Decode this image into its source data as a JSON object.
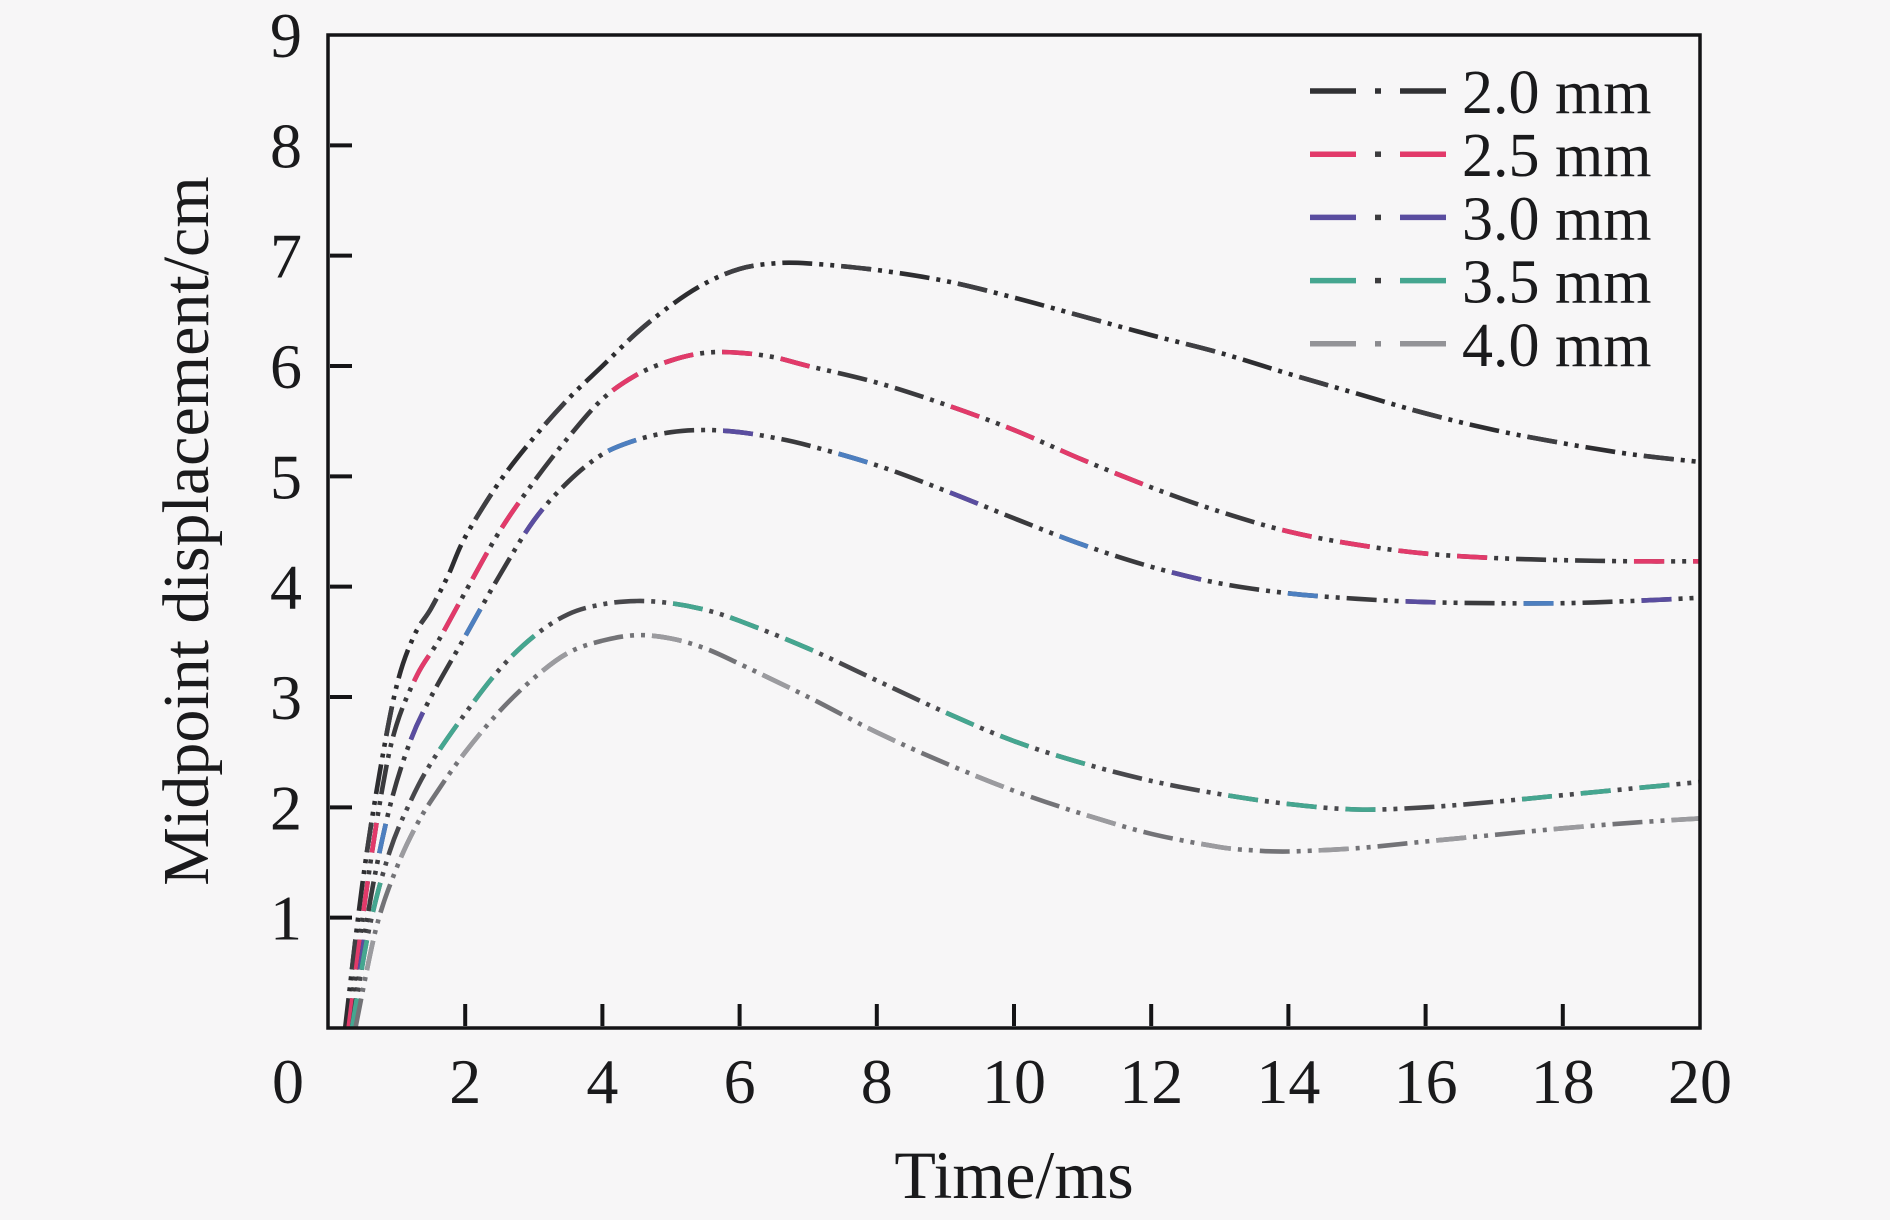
{
  "chart_data": {
    "type": "line",
    "title": "",
    "xlabel": "Time/ms",
    "ylabel": "Midpoint displacement/cm",
    "xlim": [
      0,
      20
    ],
    "ylim": [
      0,
      9
    ],
    "xticks": [
      0,
      2,
      4,
      6,
      8,
      10,
      12,
      14,
      16,
      18,
      20
    ],
    "yticks": [
      1,
      2,
      3,
      4,
      5,
      6,
      7,
      8,
      9
    ],
    "grid": false,
    "legend_position": "top-right",
    "line_style": "dash-dot-dot",
    "frame_color": "#141416",
    "background_color": "#f7f6f7",
    "origin_label": "0",
    "series": [
      {
        "name": "2.0 mm",
        "legend_color": "#313134",
        "legend_dot_color": "#313134",
        "layers": [
          {
            "color": "#2d2d30",
            "dash": "30 7 4 7 4 7",
            "offset": 0
          },
          {
            "color": "#3f3f43",
            "dash": "30 88",
            "offset": 177
          }
        ],
        "points": [
          [
            0.25,
            0
          ],
          [
            0.5,
            1.3
          ],
          [
            0.75,
            2.3
          ],
          [
            1,
            3.1
          ],
          [
            1.25,
            3.55
          ],
          [
            1.5,
            3.8
          ],
          [
            1.75,
            4.1
          ],
          [
            2,
            4.45
          ],
          [
            2.5,
            4.95
          ],
          [
            3,
            5.35
          ],
          [
            3.5,
            5.7
          ],
          [
            4,
            6.0
          ],
          [
            4.5,
            6.3
          ],
          [
            5,
            6.55
          ],
          [
            5.5,
            6.75
          ],
          [
            6,
            6.88
          ],
          [
            6.5,
            6.93
          ],
          [
            7,
            6.93
          ],
          [
            8,
            6.87
          ],
          [
            9,
            6.77
          ],
          [
            10,
            6.62
          ],
          [
            11,
            6.45
          ],
          [
            12,
            6.28
          ],
          [
            13,
            6.12
          ],
          [
            14,
            5.93
          ],
          [
            15,
            5.75
          ],
          [
            16,
            5.57
          ],
          [
            17,
            5.42
          ],
          [
            18,
            5.3
          ],
          [
            19,
            5.2
          ],
          [
            20,
            5.13
          ]
        ]
      },
      {
        "name": "2.5 mm",
        "legend_color": "#e23a6a",
        "legend_dot_color": "#3c3c3e",
        "layers": [
          {
            "color": "#3a3a3d",
            "dash": "30 7 4 7 4 7",
            "offset": 0
          },
          {
            "color": "#e23a6a",
            "dash": "30 29 30 29 30 29 30 147",
            "offset": 0
          }
        ],
        "points": [
          [
            0.3,
            0
          ],
          [
            0.55,
            1.2
          ],
          [
            0.8,
            2.2
          ],
          [
            1,
            2.75
          ],
          [
            1.3,
            3.2
          ],
          [
            1.6,
            3.5
          ],
          [
            2,
            3.95
          ],
          [
            2.5,
            4.5
          ],
          [
            3,
            4.95
          ],
          [
            3.5,
            5.35
          ],
          [
            4,
            5.7
          ],
          [
            4.5,
            5.92
          ],
          [
            5,
            6.05
          ],
          [
            5.5,
            6.12
          ],
          [
            6,
            6.12
          ],
          [
            6.5,
            6.08
          ],
          [
            7,
            6.0
          ],
          [
            8,
            5.85
          ],
          [
            9,
            5.65
          ],
          [
            10,
            5.42
          ],
          [
            11,
            5.15
          ],
          [
            12,
            4.9
          ],
          [
            13,
            4.68
          ],
          [
            14,
            4.5
          ],
          [
            15,
            4.38
          ],
          [
            16,
            4.3
          ],
          [
            17,
            4.26
          ],
          [
            18,
            4.24
          ],
          [
            19,
            4.23
          ],
          [
            20,
            4.23
          ]
        ]
      },
      {
        "name": "3.0 mm",
        "legend_color": "#5a4da0",
        "legend_dot_color": "#3c3c3e",
        "layers": [
          {
            "color": "#3a3a3d",
            "dash": "30 7 4 7 4 7",
            "offset": 0
          },
          {
            "color": "#5a4da0",
            "dash": "30 206",
            "offset": 177
          },
          {
            "color": "#4d7fc0",
            "dash": "30 206",
            "offset": 59
          }
        ],
        "points": [
          [
            0.35,
            0
          ],
          [
            0.6,
            1.1
          ],
          [
            0.9,
            2.0
          ],
          [
            1.2,
            2.6
          ],
          [
            1.5,
            3.0
          ],
          [
            2,
            3.55
          ],
          [
            2.5,
            4.1
          ],
          [
            3,
            4.6
          ],
          [
            3.5,
            4.95
          ],
          [
            4,
            5.2
          ],
          [
            4.5,
            5.33
          ],
          [
            5,
            5.4
          ],
          [
            5.5,
            5.42
          ],
          [
            6,
            5.4
          ],
          [
            6.5,
            5.35
          ],
          [
            7,
            5.28
          ],
          [
            8,
            5.1
          ],
          [
            9,
            4.87
          ],
          [
            10,
            4.62
          ],
          [
            11,
            4.38
          ],
          [
            12,
            4.18
          ],
          [
            13,
            4.03
          ],
          [
            14,
            3.94
          ],
          [
            15,
            3.89
          ],
          [
            16,
            3.86
          ],
          [
            17,
            3.85
          ],
          [
            18,
            3.85
          ],
          [
            19,
            3.87
          ],
          [
            20,
            3.9
          ]
        ]
      },
      {
        "name": "3.5 mm",
        "legend_color": "#45a690",
        "legend_dot_color": "#3c3c3e",
        "layers": [
          {
            "color": "#48484c",
            "dash": "30 7 4 7 4 7",
            "offset": 0
          },
          {
            "color": "#45a690",
            "dash": "30 29 30 29 30 147",
            "offset": 0
          }
        ],
        "points": [
          [
            0.35,
            0
          ],
          [
            0.6,
            0.9
          ],
          [
            0.9,
            1.6
          ],
          [
            1.2,
            2.05
          ],
          [
            1.5,
            2.4
          ],
          [
            2,
            2.85
          ],
          [
            2.5,
            3.25
          ],
          [
            3,
            3.55
          ],
          [
            3.5,
            3.75
          ],
          [
            4,
            3.84
          ],
          [
            4.5,
            3.87
          ],
          [
            5,
            3.85
          ],
          [
            5.5,
            3.79
          ],
          [
            6,
            3.69
          ],
          [
            7,
            3.44
          ],
          [
            8,
            3.15
          ],
          [
            9,
            2.86
          ],
          [
            10,
            2.6
          ],
          [
            11,
            2.4
          ],
          [
            12,
            2.24
          ],
          [
            13,
            2.12
          ],
          [
            14,
            2.03
          ],
          [
            15,
            1.98
          ],
          [
            16,
            2.0
          ],
          [
            17,
            2.05
          ],
          [
            18,
            2.11
          ],
          [
            19,
            2.17
          ],
          [
            20,
            2.23
          ]
        ]
      },
      {
        "name": "4.0 mm",
        "legend_color": "#939397",
        "legend_dot_color": "#8a8a8e",
        "layers": [
          {
            "color": "#737377",
            "dash": "30 7 4 7 4 7",
            "offset": 0
          },
          {
            "color": "#9b9b9f",
            "dash": "30 88",
            "offset": 177
          }
        ],
        "points": [
          [
            0.4,
            0
          ],
          [
            0.7,
            0.9
          ],
          [
            1,
            1.45
          ],
          [
            1.3,
            1.85
          ],
          [
            1.6,
            2.15
          ],
          [
            2,
            2.5
          ],
          [
            2.5,
            2.87
          ],
          [
            3,
            3.17
          ],
          [
            3.5,
            3.4
          ],
          [
            4,
            3.51
          ],
          [
            4.5,
            3.56
          ],
          [
            5,
            3.53
          ],
          [
            5.5,
            3.44
          ],
          [
            6,
            3.3
          ],
          [
            7,
            3.0
          ],
          [
            8,
            2.68
          ],
          [
            9,
            2.4
          ],
          [
            10,
            2.15
          ],
          [
            11,
            1.94
          ],
          [
            12,
            1.76
          ],
          [
            13,
            1.64
          ],
          [
            13.5,
            1.61
          ],
          [
            14,
            1.6
          ],
          [
            15,
            1.63
          ],
          [
            16,
            1.69
          ],
          [
            17,
            1.75
          ],
          [
            18,
            1.81
          ],
          [
            19,
            1.86
          ],
          [
            20,
            1.9
          ]
        ]
      }
    ]
  }
}
